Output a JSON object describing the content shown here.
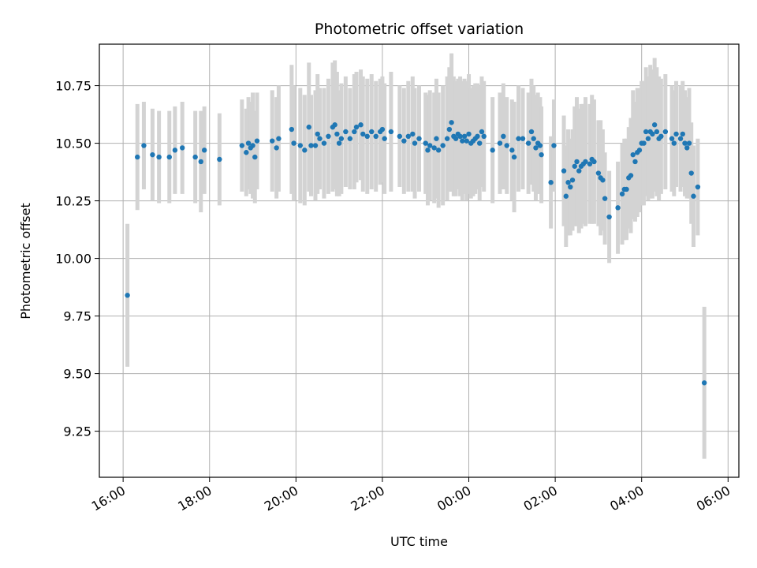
{
  "chart_data": {
    "type": "scatter",
    "title": "Photometric offset variation",
    "xlabel": "UTC time",
    "ylabel": "Photometric offset",
    "grid": true,
    "x_unit": "hours since 16:00 UTC",
    "xlim": [
      -0.55,
      14.25
    ],
    "ylim": [
      9.05,
      10.93
    ],
    "x_ticks": [
      {
        "value": 0,
        "label": "16:00"
      },
      {
        "value": 2,
        "label": "18:00"
      },
      {
        "value": 4,
        "label": "20:00"
      },
      {
        "value": 6,
        "label": "22:00"
      },
      {
        "value": 8,
        "label": "00:00"
      },
      {
        "value": 10,
        "label": "02:00"
      },
      {
        "value": 12,
        "label": "04:00"
      },
      {
        "value": 14,
        "label": "06:00"
      }
    ],
    "y_ticks": [
      {
        "value": 9.25,
        "label": "9.25"
      },
      {
        "value": 9.5,
        "label": "9.50"
      },
      {
        "value": 9.75,
        "label": "9.75"
      },
      {
        "value": 10.0,
        "label": "10.00"
      },
      {
        "value": 10.25,
        "label": "10.25"
      },
      {
        "value": 10.5,
        "label": "10.50"
      },
      {
        "value": 10.75,
        "label": "10.75"
      }
    ],
    "colors": {
      "marker": "#1f77b4",
      "errorbar": "#d3d3d3",
      "grid": "#b0b0b0"
    },
    "series": [
      {
        "name": "offset",
        "points": [
          [
            0.1,
            9.84,
            0.31
          ],
          [
            0.33,
            10.44,
            0.23
          ],
          [
            0.48,
            10.49,
            0.19
          ],
          [
            0.68,
            10.45,
            0.2
          ],
          [
            0.83,
            10.44,
            0.2
          ],
          [
            1.07,
            10.44,
            0.2
          ],
          [
            1.2,
            10.47,
            0.19
          ],
          [
            1.37,
            10.48,
            0.2
          ],
          [
            1.67,
            10.44,
            0.2
          ],
          [
            1.8,
            10.42,
            0.22
          ],
          [
            1.88,
            10.47,
            0.19
          ],
          [
            2.23,
            10.43,
            0.2
          ],
          [
            2.75,
            10.49,
            0.2
          ],
          [
            2.85,
            10.46,
            0.19
          ],
          [
            2.9,
            10.5,
            0.2
          ],
          [
            2.95,
            10.48,
            0.2
          ],
          [
            3.0,
            10.49,
            0.23
          ],
          [
            3.05,
            10.44,
            0.2
          ],
          [
            3.1,
            10.51,
            0.21
          ],
          [
            3.45,
            10.51,
            0.22
          ],
          [
            3.55,
            10.48,
            0.22
          ],
          [
            3.6,
            10.52,
            0.23
          ],
          [
            3.9,
            10.56,
            0.28
          ],
          [
            3.95,
            10.5,
            0.25
          ],
          [
            4.1,
            10.49,
            0.25
          ],
          [
            4.2,
            10.47,
            0.24
          ],
          [
            4.3,
            10.57,
            0.28
          ],
          [
            4.35,
            10.49,
            0.22
          ],
          [
            4.45,
            10.49,
            0.24
          ],
          [
            4.5,
            10.54,
            0.26
          ],
          [
            4.55,
            10.52,
            0.22
          ],
          [
            4.65,
            10.5,
            0.24
          ],
          [
            4.75,
            10.53,
            0.25
          ],
          [
            4.85,
            10.57,
            0.28
          ],
          [
            4.9,
            10.58,
            0.28
          ],
          [
            4.95,
            10.54,
            0.27
          ],
          [
            5.0,
            10.5,
            0.23
          ],
          [
            5.05,
            10.52,
            0.24
          ],
          [
            5.15,
            10.55,
            0.24
          ],
          [
            5.25,
            10.52,
            0.22
          ],
          [
            5.35,
            10.55,
            0.25
          ],
          [
            5.4,
            10.57,
            0.24
          ],
          [
            5.5,
            10.58,
            0.24
          ],
          [
            5.55,
            10.54,
            0.25
          ],
          [
            5.65,
            10.53,
            0.25
          ],
          [
            5.75,
            10.55,
            0.25
          ],
          [
            5.85,
            10.53,
            0.24
          ],
          [
            5.95,
            10.55,
            0.23
          ],
          [
            6.0,
            10.56,
            0.23
          ],
          [
            6.05,
            10.52,
            0.24
          ],
          [
            6.2,
            10.55,
            0.26
          ],
          [
            6.4,
            10.53,
            0.22
          ],
          [
            6.5,
            10.51,
            0.23
          ],
          [
            6.6,
            10.53,
            0.24
          ],
          [
            6.7,
            10.54,
            0.25
          ],
          [
            6.75,
            10.5,
            0.24
          ],
          [
            6.85,
            10.52,
            0.23
          ],
          [
            7.0,
            10.5,
            0.22
          ],
          [
            7.05,
            10.47,
            0.24
          ],
          [
            7.1,
            10.49,
            0.24
          ],
          [
            7.2,
            10.48,
            0.24
          ],
          [
            7.25,
            10.52,
            0.26
          ],
          [
            7.3,
            10.47,
            0.25
          ],
          [
            7.4,
            10.49,
            0.26
          ],
          [
            7.5,
            10.52,
            0.27
          ],
          [
            7.55,
            10.56,
            0.27
          ],
          [
            7.6,
            10.59,
            0.3
          ],
          [
            7.65,
            10.53,
            0.26
          ],
          [
            7.7,
            10.52,
            0.25
          ],
          [
            7.75,
            10.54,
            0.24
          ],
          [
            7.8,
            10.53,
            0.26
          ],
          [
            7.85,
            10.51,
            0.26
          ],
          [
            7.9,
            10.53,
            0.25
          ],
          [
            7.95,
            10.51,
            0.26
          ],
          [
            8.0,
            10.54,
            0.26
          ],
          [
            8.05,
            10.5,
            0.24
          ],
          [
            8.1,
            10.51,
            0.24
          ],
          [
            8.15,
            10.52,
            0.24
          ],
          [
            8.2,
            10.53,
            0.23
          ],
          [
            8.25,
            10.5,
            0.25
          ],
          [
            8.3,
            10.55,
            0.24
          ],
          [
            8.35,
            10.53,
            0.24
          ],
          [
            8.55,
            10.47,
            0.23
          ],
          [
            8.72,
            10.5,
            0.22
          ],
          [
            8.8,
            10.53,
            0.23
          ],
          [
            8.88,
            10.49,
            0.21
          ],
          [
            9.0,
            10.47,
            0.22
          ],
          [
            9.05,
            10.44,
            0.24
          ],
          [
            9.15,
            10.52,
            0.23
          ],
          [
            9.25,
            10.52,
            0.22
          ],
          [
            9.38,
            10.5,
            0.22
          ],
          [
            9.45,
            10.55,
            0.23
          ],
          [
            9.5,
            10.52,
            0.23
          ],
          [
            9.55,
            10.48,
            0.23
          ],
          [
            9.6,
            10.5,
            0.22
          ],
          [
            9.65,
            10.49,
            0.21
          ],
          [
            9.68,
            10.45,
            0.21
          ],
          [
            9.9,
            10.33,
            0.2
          ],
          [
            9.97,
            10.49,
            0.2
          ],
          [
            10.2,
            10.38,
            0.24
          ],
          [
            10.25,
            10.27,
            0.22
          ],
          [
            10.3,
            10.33,
            0.23
          ],
          [
            10.35,
            10.31,
            0.21
          ],
          [
            10.4,
            10.34,
            0.22
          ],
          [
            10.45,
            10.4,
            0.26
          ],
          [
            10.5,
            10.42,
            0.28
          ],
          [
            10.55,
            10.38,
            0.27
          ],
          [
            10.6,
            10.4,
            0.27
          ],
          [
            10.65,
            10.41,
            0.26
          ],
          [
            10.7,
            10.42,
            0.28
          ],
          [
            10.8,
            10.41,
            0.26
          ],
          [
            10.85,
            10.43,
            0.28
          ],
          [
            10.9,
            10.42,
            0.27
          ],
          [
            11.0,
            10.37,
            0.23
          ],
          [
            11.05,
            10.35,
            0.25
          ],
          [
            11.1,
            10.34,
            0.22
          ],
          [
            11.15,
            10.26,
            0.2
          ],
          [
            11.25,
            10.18,
            0.2
          ],
          [
            11.45,
            10.22,
            0.2
          ],
          [
            11.55,
            10.28,
            0.22
          ],
          [
            11.6,
            10.3,
            0.22
          ],
          [
            11.65,
            10.3,
            0.22
          ],
          [
            11.7,
            10.35,
            0.22
          ],
          [
            11.75,
            10.36,
            0.25
          ],
          [
            11.8,
            10.45,
            0.28
          ],
          [
            11.85,
            10.42,
            0.26
          ],
          [
            11.9,
            10.46,
            0.28
          ],
          [
            11.95,
            10.47,
            0.27
          ],
          [
            12.0,
            10.5,
            0.27
          ],
          [
            12.05,
            10.5,
            0.27
          ],
          [
            12.1,
            10.55,
            0.28
          ],
          [
            12.15,
            10.52,
            0.27
          ],
          [
            12.2,
            10.55,
            0.29
          ],
          [
            12.25,
            10.54,
            0.28
          ],
          [
            12.3,
            10.58,
            0.29
          ],
          [
            12.35,
            10.55,
            0.28
          ],
          [
            12.4,
            10.52,
            0.27
          ],
          [
            12.45,
            10.53,
            0.25
          ],
          [
            12.55,
            10.55,
            0.25
          ],
          [
            12.7,
            10.52,
            0.23
          ],
          [
            12.75,
            10.5,
            0.23
          ],
          [
            12.8,
            10.54,
            0.23
          ],
          [
            12.9,
            10.52,
            0.23
          ],
          [
            12.95,
            10.54,
            0.23
          ],
          [
            13.0,
            10.5,
            0.23
          ],
          [
            13.05,
            10.48,
            0.22
          ],
          [
            13.1,
            10.5,
            0.24
          ],
          [
            13.15,
            10.37,
            0.22
          ],
          [
            13.2,
            10.27,
            0.22
          ],
          [
            13.3,
            10.31,
            0.21
          ],
          [
            13.45,
            9.46,
            0.33
          ]
        ]
      }
    ]
  }
}
